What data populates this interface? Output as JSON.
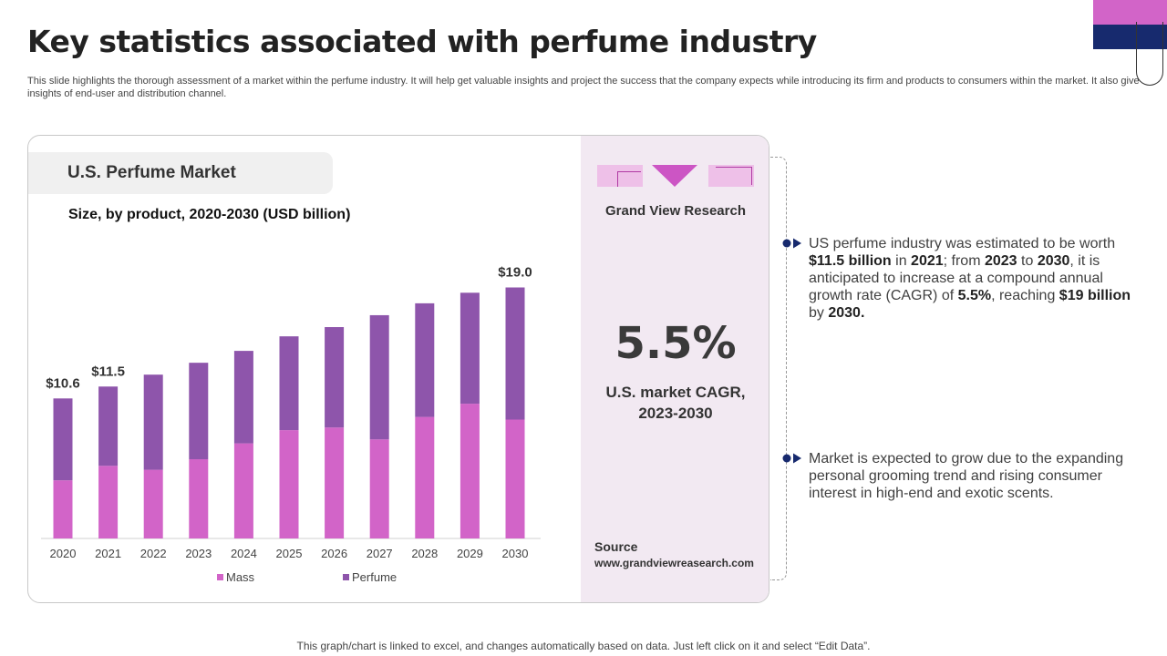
{
  "page": {
    "title": "Key statistics associated with perfume industry",
    "subtitle": "This slide highlights the thorough assessment of a market within the perfume industry. It will help get valuable insights and project the success that the company expects while introducing its firm and products to consumers within the market. It also give insights of end-user and distribution channel.",
    "footer": "This graph/chart is linked to excel, and changes automatically based on data. Just left click on it and select “Edit Data”."
  },
  "colors": {
    "mass": "#d264c8",
    "perfume": "#8e55ab",
    "accent_navy": "#172a6e",
    "accent_pink": "#d264c8",
    "panel": "#f2e9f2"
  },
  "chart_panel": {
    "header": "U.S. Perfume Market",
    "subheader": "Size, by product, 2020-2030 (USD billion)"
  },
  "chart_data": {
    "type": "bar",
    "stacked": true,
    "title": "U.S. Perfume Market",
    "subtitle": "Size, by product, 2020-2030 (USD billion)",
    "categories": [
      "2020",
      "2021",
      "2022",
      "2023",
      "2024",
      "2025",
      "2026",
      "2027",
      "2028",
      "2029",
      "2030"
    ],
    "series": [
      {
        "name": "Mass",
        "color": "#d264c8",
        "values": [
          4.4,
          5.5,
          5.2,
          6.0,
          7.2,
          8.2,
          8.4,
          7.5,
          9.2,
          10.2,
          9.0
        ]
      },
      {
        "name": "Perfume",
        "color": "#8e55ab",
        "values": [
          6.2,
          6.0,
          7.2,
          7.3,
          7.0,
          7.1,
          7.6,
          9.4,
          8.6,
          8.4,
          10.0
        ]
      }
    ],
    "data_labels": [
      {
        "category": "2020",
        "text": "$10.6"
      },
      {
        "category": "2021",
        "text": "$11.5"
      },
      {
        "category": "2030",
        "text": "$19.0"
      }
    ],
    "xlabel": "",
    "ylabel": "",
    "ylim": [
      0,
      20
    ],
    "grid": false,
    "legend_position": "bottom"
  },
  "stat_panel": {
    "source_name": "Grand View Research",
    "big_value": "5.5%",
    "caption_line1": "U.S. market CAGR,",
    "caption_line2": "2023-2030",
    "source_label": "Source",
    "source_url": "www.grandviewreasearch.com"
  },
  "points": {
    "p1": {
      "t1": "US perfume industry was estimated to be worth ",
      "b1": "$11.5 billion",
      "t2": " in ",
      "b2": "2021",
      "t3": "; from ",
      "b3": "2023",
      "t4": " to ",
      "b4": "2030",
      "t5": ", it is anticipated to increase at a compound annual growth rate (CAGR) of ",
      "b5": "5.5%",
      "t6": ", reaching ",
      "b6": "$19 billion",
      "t7": " by ",
      "b7": "2030."
    },
    "p2": "Market is expected to grow due to the expanding personal grooming trend and rising consumer interest in high-end and exotic scents."
  }
}
